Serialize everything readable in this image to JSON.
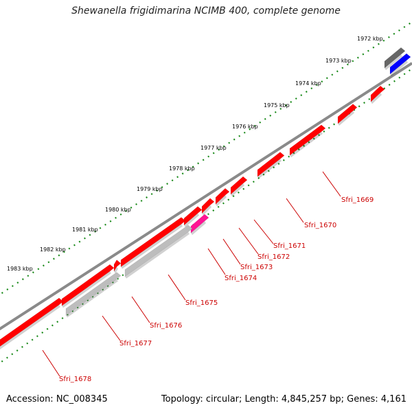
{
  "title": "Shewanella frigidimarina NCIMB 400, complete genome",
  "footer": {
    "accession": "Accession: NC_008345",
    "topology": "Topology: circular; Length: 4,845,257 bp; Genes: 4,161"
  },
  "colors": {
    "backbone": "#8a8a8a",
    "cds_forward": "#ff0000",
    "cds_reverse_gray": "#bdbdbd",
    "cds_dark_gray": "#666666",
    "cds_blue": "#0000ff",
    "cds_magenta": "#ff1493",
    "scale_ticks": "#1a8a1a",
    "label_text": "#cc0000"
  },
  "ruler": {
    "ticks": [
      "1972 kbp",
      "1973 kbp",
      "1974 kbp",
      "1975 kbp",
      "1976 kbp",
      "1977 kbp",
      "1978 kbp",
      "1979 kbp",
      "1980 kbp",
      "1981 kbp",
      "1982 kbp",
      "1983 kbp"
    ]
  },
  "genes": {
    "labels": [
      "Sfri_1669",
      "Sfri_1670",
      "Sfri_1671",
      "Sfri_1672",
      "Sfri_1673",
      "Sfri_1674",
      "Sfri_1675",
      "Sfri_1676",
      "Sfri_1677",
      "Sfri_1678"
    ]
  }
}
